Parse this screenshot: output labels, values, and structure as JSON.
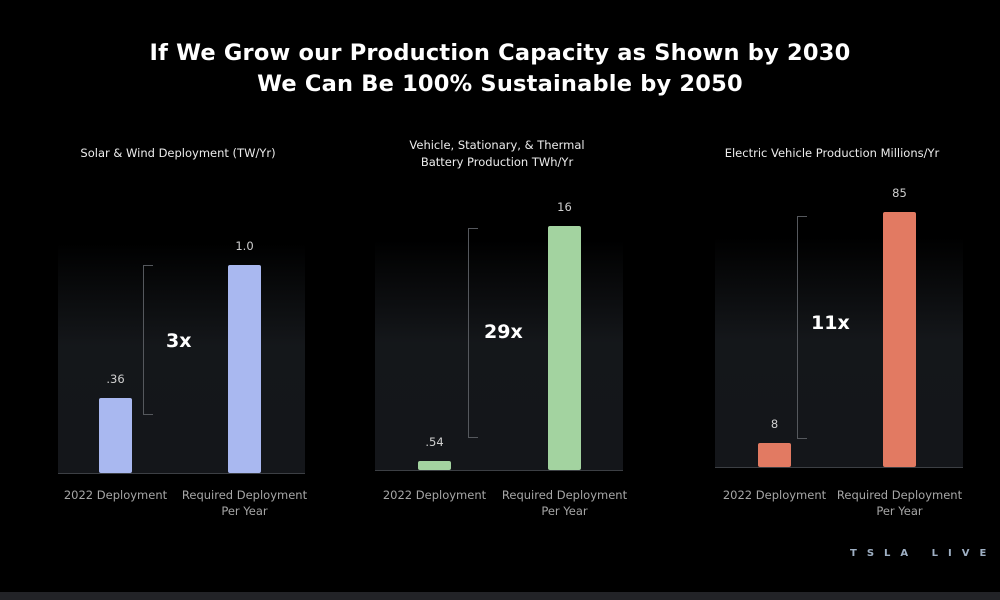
{
  "title": {
    "line1": "If We Grow our Production Capacity as Shown by 2030",
    "line2": "We Can Be 100% Sustainable by 2050"
  },
  "logo": "TSLA LIVE",
  "colors": {
    "background": "#000000",
    "solar_bar": "#a9b8f0",
    "battery_bar": "#a3d3a0",
    "ev_bar": "#e27a62"
  },
  "chart_data": [
    {
      "type": "bar",
      "title_lines": [
        "Solar & Wind Deployment (TW/Yr)"
      ],
      "categories": [
        [
          "2022 Deployment"
        ],
        [
          "Required Deployment",
          "Per Year"
        ]
      ],
      "values": [
        0.36,
        1.0
      ],
      "value_labels": [
        ".36",
        "1.0"
      ],
      "multiplier": "3x",
      "color": "#a9b8f0"
    },
    {
      "type": "bar",
      "title_lines": [
        "Vehicle, Stationary, & Thermal",
        "Battery Production TWh/Yr"
      ],
      "categories": [
        [
          "2022 Deployment"
        ],
        [
          "Required Deployment",
          "Per Year"
        ]
      ],
      "values": [
        0.54,
        16
      ],
      "value_labels": [
        ".54",
        "16"
      ],
      "multiplier": "29x",
      "color": "#a3d3a0"
    },
    {
      "type": "bar",
      "title_lines": [
        "Electric Vehicle Production Millions/Yr"
      ],
      "categories": [
        [
          "2022 Deployment"
        ],
        [
          "Required Deployment",
          "Per Year"
        ]
      ],
      "values": [
        8,
        85
      ],
      "value_labels": [
        "8",
        "85"
      ],
      "multiplier": "11x",
      "color": "#e27a62"
    }
  ]
}
